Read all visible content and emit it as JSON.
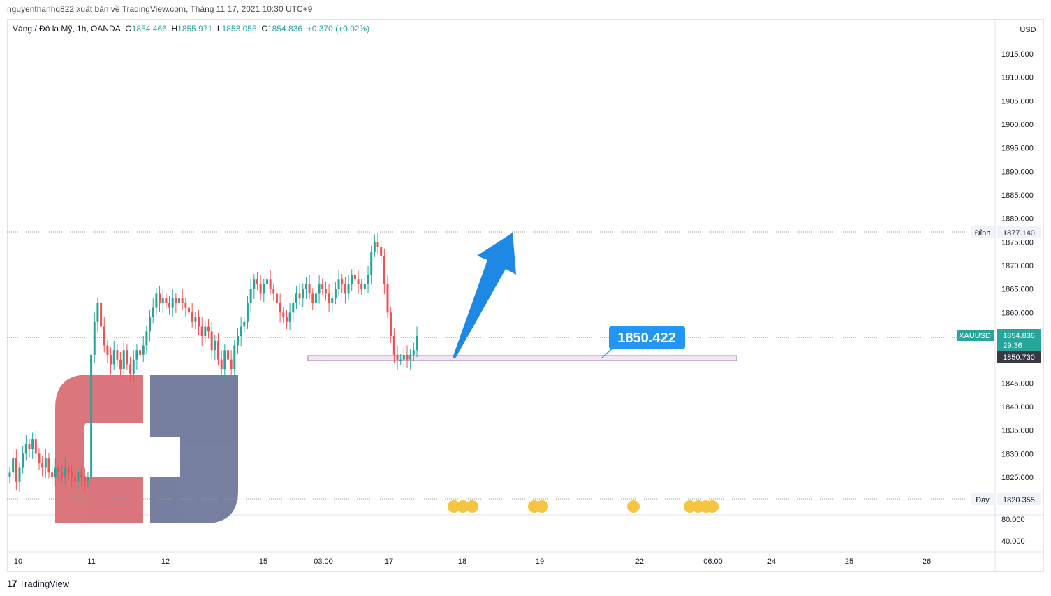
{
  "header": {
    "publish_line": "nguyenthanhq822 xuất bản về TradingView.com, Tháng 11 17, 2021 10:30 UTC+9"
  },
  "symbol_bar": {
    "title": "Vàng / Đô la Mỹ, 1h, OANDA",
    "o_label": "O",
    "o_value": "1854.466",
    "h_label": "H",
    "h_value": "1855.971",
    "l_label": "L",
    "l_value": "1853.055",
    "c_label": "C",
    "c_value": "1854.836",
    "change": "+0.370 (+0.02%)"
  },
  "price_axis": {
    "currency": "USD",
    "ticks": [
      "1915.000",
      "1910.000",
      "1905.000",
      "1900.000",
      "1895.000",
      "1890.000",
      "1885.000",
      "1880.000",
      "1875.000",
      "1870.000",
      "1865.000",
      "1860.000",
      "1855.000",
      "1850.000",
      "1845.000",
      "1840.000",
      "1835.000",
      "1830.000",
      "1825.000"
    ],
    "indicator_ticks": [
      "80.000",
      "40.000"
    ]
  },
  "markers": {
    "high_label": "Đỉnh",
    "high_value": "1877.140",
    "low_label": "Đáy",
    "low_value": "1820.355",
    "symbol_tag": "XAUUSD",
    "last_price": "1854.836",
    "countdown": "29:36",
    "support_price": "1850.730",
    "callout": "1850.422"
  },
  "time_axis": [
    "10",
    "11",
    "12",
    "15",
    "03:00",
    "17",
    "18",
    "19",
    "22",
    "06:00",
    "24",
    "25",
    "26"
  ],
  "footer": {
    "brand": "TradingView"
  },
  "colors": {
    "up": "#26a69a",
    "down": "#ef5350",
    "arrow": "#2196f3",
    "support_fill": "#f3e5f5",
    "logo_red": "#d96a72",
    "logo_blue": "#6b7599"
  },
  "chart_data": {
    "type": "candlestick",
    "title": "Vàng / Đô la Mỹ, 1h, OANDA",
    "ylim": [
      1820,
      1918
    ],
    "high": 1877.14,
    "low": 1820.355,
    "last": 1854.836,
    "support_zone": [
      1850.1,
      1850.9
    ],
    "annotation": {
      "text": "1850.422",
      "price": 1850.422
    },
    "arrow": {
      "from_price": 1850.5,
      "to_price": 1877
    },
    "series": [
      {
        "name": "Nov 10",
        "close": [
          1826,
          1829,
          1824,
          1827,
          1830,
          1832,
          1831,
          1833,
          1830,
          1828,
          1827,
          1829,
          1826,
          1825,
          1827,
          1826,
          1825,
          1827,
          1826,
          1825,
          1824,
          1826,
          1825,
          1824
        ]
      },
      {
        "name": "Nov 11",
        "close": [
          1825,
          1851,
          1858,
          1862,
          1857,
          1853,
          1851,
          1849,
          1852,
          1850,
          1848,
          1852,
          1849,
          1847,
          1850,
          1852,
          1851,
          1853,
          1856,
          1859,
          1861,
          1864,
          1862,
          1863
        ]
      },
      {
        "name": "Nov 12",
        "close": [
          1862,
          1861,
          1863,
          1862,
          1863,
          1862,
          1861,
          1860,
          1858,
          1859,
          1857,
          1855,
          1857,
          1856,
          1852,
          1854,
          1850,
          1848,
          1852,
          1850,
          1848,
          1853,
          1855,
          1857
        ]
      },
      {
        "name": "Nov 15",
        "close": [
          1858,
          1862,
          1865,
          1867,
          1866,
          1864,
          1866,
          1867,
          1865,
          1864,
          1862,
          1860,
          1859,
          1858,
          1860,
          1862,
          1864,
          1863,
          1865,
          1866,
          1864,
          1862,
          1864,
          1866
        ]
      },
      {
        "name": "Nov 16",
        "close": [
          1865,
          1864,
          1862,
          1863,
          1865,
          1867,
          1866,
          1864,
          1866,
          1868,
          1867,
          1866,
          1865,
          1866,
          1868,
          1873,
          1875,
          1874,
          1872,
          1866,
          1860,
          1855,
          1851,
          1850
        ]
      },
      {
        "name": "Nov 17",
        "close": [
          1850,
          1851,
          1850,
          1851,
          1852,
          1855
        ]
      }
    ]
  }
}
